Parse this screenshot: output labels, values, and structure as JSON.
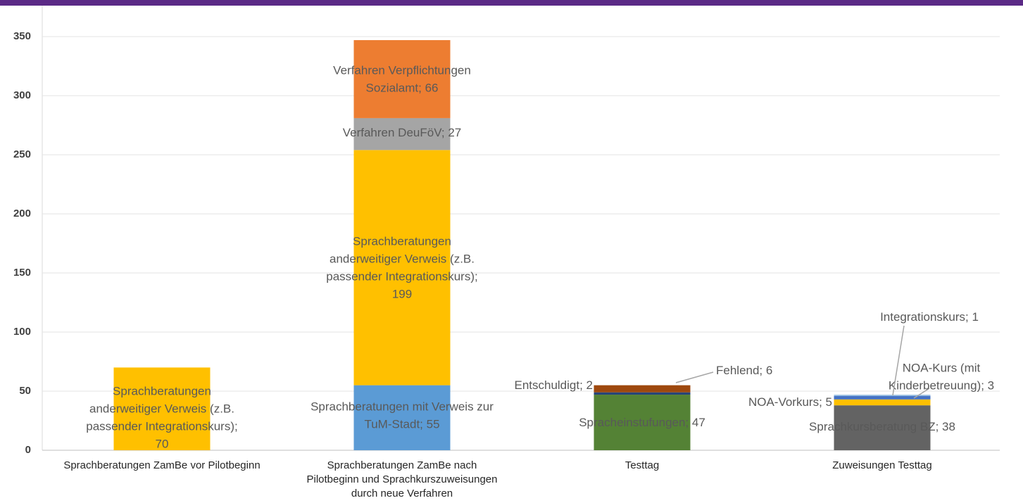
{
  "chart_data": {
    "type": "stacked_bar",
    "categories": [
      "Sprachberatungen ZamBe vor Pilotbeginn",
      "Sprachberatungen ZamBe nach Pilotbeginn und Sprachkurszuweisungen durch neue Verfahren",
      "Testtag",
      "Zuweisungen Testtag"
    ],
    "ylim": [
      0,
      350
    ],
    "yticks": [
      0,
      50,
      100,
      150,
      200,
      250,
      300,
      350
    ],
    "grid": true,
    "series": [
      {
        "color": "#5b9bd5",
        "values": [
          null,
          55,
          null,
          null
        ],
        "value_labels": [
          null,
          "Sprachberatungen mit Verweis zur TuM-Stadt; 55",
          null,
          null
        ]
      },
      {
        "color": "#ffc000",
        "values": [
          70,
          199,
          null,
          null
        ],
        "value_labels": [
          "Sprachberatungen anderweitiger Verweis (z.B. passender Integrationskurs); 70",
          "Sprachberatungen anderweitiger Verweis (z.B. passender Integrationskurs); 199",
          null,
          null
        ]
      },
      {
        "color": "#a5a5a5",
        "values": [
          null,
          27,
          null,
          null
        ],
        "value_labels": [
          null,
          "Verfahren DeuFöV; 27",
          null,
          null
        ]
      },
      {
        "color": "#ed7d31",
        "values": [
          null,
          66,
          null,
          null
        ],
        "value_labels": [
          null,
          "Verfahren Verpflichtungen Sozialamt; 66",
          null,
          null
        ]
      },
      {
        "color": "#548235",
        "values": [
          null,
          null,
          47,
          null
        ],
        "value_labels": [
          null,
          null,
          "Spracheinstufungen; 47",
          null
        ]
      },
      {
        "color": "#264478",
        "values": [
          null,
          null,
          2,
          null
        ],
        "value_labels": [
          null,
          null,
          "Entschuldigt; 2",
          null
        ]
      },
      {
        "color": "#9e480e",
        "values": [
          null,
          null,
          6,
          null
        ],
        "value_labels": [
          null,
          null,
          "Fehlend; 6",
          null
        ]
      },
      {
        "color": "#636363",
        "values": [
          null,
          null,
          null,
          38
        ],
        "value_labels": [
          null,
          null,
          null,
          "Sprachkursberatung BZ; 38"
        ]
      },
      {
        "color": "#ffc000",
        "values": [
          null,
          null,
          null,
          5
        ],
        "value_labels": [
          null,
          null,
          null,
          "NOA-Vorkurs; 5"
        ]
      },
      {
        "color": "#4472c4",
        "values": [
          null,
          null,
          null,
          3
        ],
        "value_labels": [
          null,
          null,
          null,
          "NOA-Kurs (mit Kinderbetreuung); 3"
        ]
      },
      {
        "color": "#9dc3e6",
        "values": [
          null,
          null,
          null,
          1
        ],
        "value_labels": [
          null,
          null,
          null,
          "Integrationskurs; 1"
        ]
      }
    ]
  }
}
